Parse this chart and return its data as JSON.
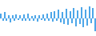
{
  "values": [
    0.8,
    -0.5,
    1.2,
    -0.6,
    0.5,
    -0.8,
    0.6,
    -0.5,
    0.7,
    -0.4,
    0.5,
    -0.6,
    0.7,
    -0.5,
    0.8,
    -0.6,
    0.4,
    -0.5,
    0.6,
    -0.7,
    0.5,
    -0.4,
    0.7,
    -0.6,
    0.9,
    -0.5,
    1.1,
    -0.7,
    1.4,
    -0.6,
    1.6,
    -0.9,
    1.2,
    -1.1,
    1.8,
    -1.3,
    1.4,
    -1.0,
    2.0,
    -1.6,
    1.5,
    -1.2,
    2.1,
    -1.8,
    1.7,
    -1.4,
    2.3,
    -1.0,
    1.9,
    -2.5
  ],
  "bar_color": "#4da6e8",
  "background_color": "#ffffff",
  "ylim": [
    -3.5,
    3.5
  ]
}
